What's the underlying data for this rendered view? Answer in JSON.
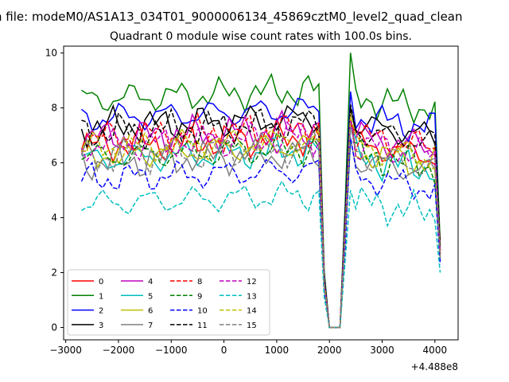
{
  "chart_data": {
    "type": "line",
    "suptitle": "n file: modeM0/AS1A13_034T01_9000006134_45869cztM0_level2_quad_clean",
    "title": "Quadrant 0 module wise count rates with 100.0s bins.",
    "xlabel": "",
    "ylabel": "",
    "x_offset_label": "+4.488e8",
    "xlim": [
      -3040,
      4440
    ],
    "ylim": [
      -0.45,
      10.25
    ],
    "xticks": [
      -3000,
      -2000,
      -1000,
      0,
      1000,
      2000,
      3000,
      4000
    ],
    "xtick_labels": [
      "−3000",
      "−2000",
      "−1000",
      "0",
      "1000",
      "2000",
      "3000",
      "4000"
    ],
    "yticks": [
      0,
      2,
      4,
      6,
      8,
      10
    ],
    "ytick_labels": [
      "0",
      "2",
      "4",
      "6",
      "8",
      "10"
    ],
    "grid": false,
    "legend_position": "lower-left",
    "legend_columns": 4,
    "gap": {
      "start": 1900,
      "drop_to": 2000,
      "flat_until": 2200,
      "resume": 2300
    },
    "series": [
      {
        "name": "0",
        "color": "#ff0000",
        "dash": false,
        "level": 6.6,
        "end": 3.2
      },
      {
        "name": "1",
        "color": "#008000",
        "dash": false,
        "level": 8.3,
        "end": 3.0
      },
      {
        "name": "2",
        "color": "#0000ff",
        "dash": false,
        "level": 7.6,
        "end": 2.4
      },
      {
        "name": "3",
        "color": "#000000",
        "dash": false,
        "level": 7.3,
        "end": 2.8
      },
      {
        "name": "4",
        "color": "#bf00bf",
        "dash": false,
        "level": 6.9,
        "end": 2.7
      },
      {
        "name": "5",
        "color": "#00bfbf",
        "dash": false,
        "level": 6.1,
        "end": 2.5
      },
      {
        "name": "6",
        "color": "#bfbf00",
        "dash": false,
        "level": 6.3,
        "end": 2.6
      },
      {
        "name": "7",
        "color": "#808080",
        "dash": false,
        "level": 6.0,
        "end": 2.6
      },
      {
        "name": "8",
        "color": "#ff0000",
        "dash": true,
        "level": 6.9,
        "end": 2.8
      },
      {
        "name": "9",
        "color": "#008000",
        "dash": true,
        "level": 6.2,
        "end": 2.6
      },
      {
        "name": "10",
        "color": "#0000ff",
        "dash": true,
        "level": 5.4,
        "end": 2.3
      },
      {
        "name": "11",
        "color": "#000000",
        "dash": true,
        "level": 7.1,
        "end": 2.9
      },
      {
        "name": "12",
        "color": "#bf00bf",
        "dash": true,
        "level": 6.6,
        "end": 2.7
      },
      {
        "name": "13",
        "color": "#00bfbf",
        "dash": true,
        "level": 4.5,
        "end": 2.0
      },
      {
        "name": "14",
        "color": "#bfbf00",
        "dash": true,
        "level": 6.5,
        "end": 2.6
      },
      {
        "name": "15",
        "color": "#808080",
        "dash": true,
        "level": 6.2,
        "end": 2.5
      }
    ]
  }
}
